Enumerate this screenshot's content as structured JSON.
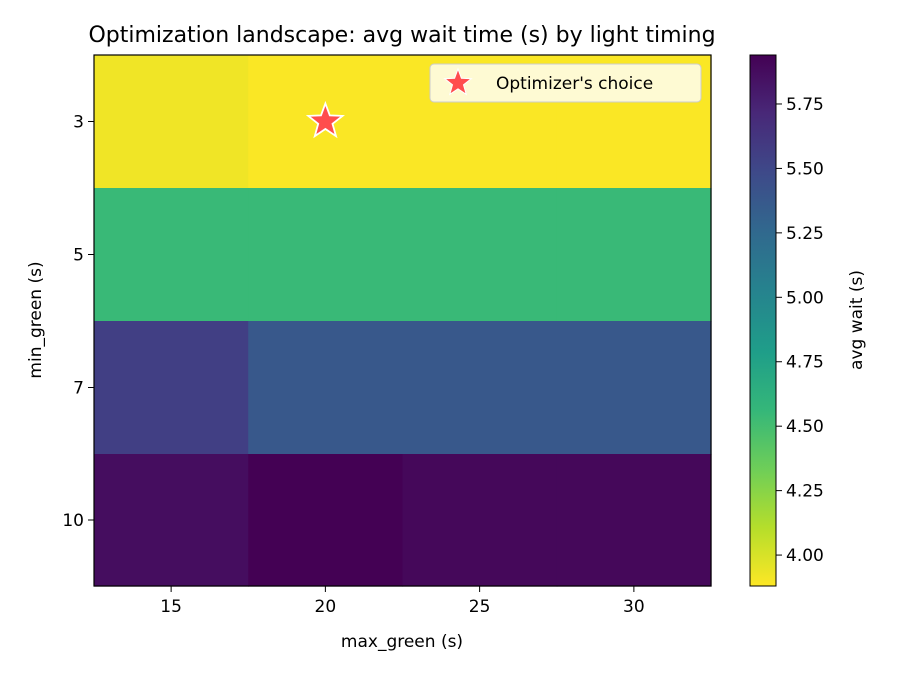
{
  "chart_data": {
    "type": "heatmap",
    "title": "Optimization landscape: avg wait time (s) by light timing",
    "xlabel": "max_green (s)",
    "ylabel": "min_green (s)",
    "x_categories": [
      "15",
      "20",
      "25",
      "30"
    ],
    "y_categories": [
      "3",
      "5",
      "7",
      "10"
    ],
    "values": [
      [
        3.92,
        3.89,
        3.89,
        3.89
      ],
      [
        4.55,
        4.55,
        4.55,
        4.55
      ],
      [
        5.55,
        5.37,
        5.37,
        5.37
      ],
      [
        5.87,
        5.94,
        5.9,
        5.9
      ]
    ],
    "colorbar": {
      "label": "avg wait (s)",
      "vmin": 3.88,
      "vmax": 5.94,
      "ticks": [
        "4.00",
        "4.25",
        "4.50",
        "4.75",
        "5.00",
        "5.25",
        "5.50",
        "5.75"
      ],
      "colormap": "viridis_r"
    },
    "marker": {
      "label": "Optimizer's choice",
      "x": "20",
      "y": "3",
      "color": "#ff4d4d",
      "symbol": "star"
    },
    "legend": {
      "position": "top-right"
    },
    "grid": false
  }
}
